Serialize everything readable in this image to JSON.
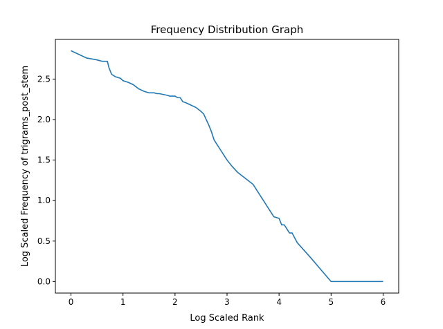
{
  "chart_data": {
    "type": "line",
    "title": "Frequency Distribution Graph",
    "xlabel": "Log Scaled Rank",
    "ylabel": "Log Scaled Frequency of trigrams_post_stem",
    "xlim": [
      -0.3,
      6.3
    ],
    "ylim": [
      -0.142,
      2.99
    ],
    "xticks": [
      0,
      1,
      2,
      3,
      4,
      5,
      6
    ],
    "xtick_labels": [
      "0",
      "1",
      "2",
      "3",
      "4",
      "5",
      "6"
    ],
    "yticks": [
      0.0,
      0.5,
      1.0,
      1.5,
      2.0,
      2.5
    ],
    "ytick_labels": [
      "0.0",
      "0.5",
      "1.0",
      "1.5",
      "2.0",
      "2.5"
    ],
    "grid": false,
    "series": [
      {
        "color": "#1f77b4",
        "x": [
          0,
          0.3,
          0.48,
          0.6,
          0.7,
          0.73,
          0.78,
          0.85,
          0.95,
          1.0,
          1.1,
          1.2,
          1.3,
          1.4,
          1.5,
          1.6,
          1.65,
          1.7,
          1.85,
          1.9,
          2.0,
          2.05,
          2.1,
          2.15,
          2.2,
          2.3,
          2.4,
          2.5,
          2.55,
          2.6,
          2.65,
          2.7,
          2.75,
          2.8,
          2.9,
          3.0,
          3.1,
          3.2,
          3.3,
          3.4,
          3.5,
          3.55,
          3.6,
          3.65,
          3.7,
          3.75,
          3.8,
          3.85,
          3.9,
          4.0,
          4.05,
          4.1,
          4.2,
          4.25,
          4.35,
          4.6,
          5.0,
          6.0
        ],
        "y": [
          2.85,
          2.76,
          2.74,
          2.72,
          2.72,
          2.64,
          2.56,
          2.53,
          2.51,
          2.48,
          2.46,
          2.43,
          2.38,
          2.35,
          2.33,
          2.33,
          2.32,
          2.32,
          2.3,
          2.29,
          2.29,
          2.27,
          2.27,
          2.22,
          2.21,
          2.18,
          2.15,
          2.1,
          2.07,
          2.0,
          1.93,
          1.85,
          1.75,
          1.7,
          1.6,
          1.5,
          1.42,
          1.35,
          1.3,
          1.25,
          1.2,
          1.15,
          1.1,
          1.05,
          1.0,
          0.95,
          0.9,
          0.85,
          0.8,
          0.78,
          0.7,
          0.7,
          0.6,
          0.6,
          0.48,
          0.3,
          0.0,
          0.0
        ],
        "step_points": [
          [
            3.95,
            0.85
          ],
          [
            4.05,
            0.78
          ],
          [
            4.2,
            0.7
          ],
          [
            4.35,
            0.6
          ],
          [
            4.6,
            0.48
          ],
          [
            5.0,
            0.3
          ]
        ]
      }
    ]
  }
}
